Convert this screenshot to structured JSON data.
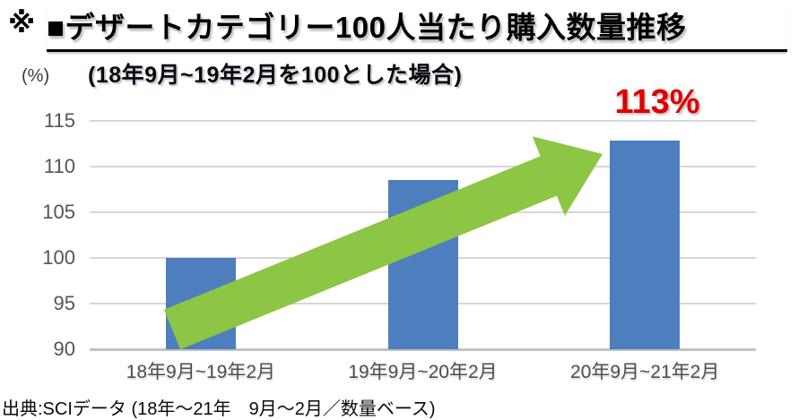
{
  "header": {
    "marker": "※",
    "title": "■デザートカテゴリー100人当たり購入数量推移"
  },
  "chart_data": {
    "type": "bar",
    "title": "デザートカテゴリー100人当たり購入数量推移",
    "subtitle": "(18年9月~19年2月を100とした場合)",
    "y_unit_label": "(%)",
    "categories": [
      "18年9月~19年2月",
      "19年9月~20年2月",
      "20年9月~21年2月"
    ],
    "values": [
      100,
      108.5,
      112.8
    ],
    "ylim": [
      90,
      115
    ],
    "yticks": [
      90,
      95,
      100,
      105,
      110,
      115
    ],
    "grid": true,
    "legend": "none",
    "annotation": {
      "text": "113%",
      "category": "20年9月~21年2月"
    },
    "colors": {
      "bar": "#4d7ebd",
      "arrow": "#8cc644",
      "annotation": "#de0000",
      "gridline": "#d6d6d6",
      "baseline": "#c2c2c2",
      "y_tick_label": "#545454",
      "x_tick_label": "#4e4e4e"
    }
  },
  "footer": {
    "source": "出典:SCIデータ (18年～21年　9月～2月／数量ベース)"
  }
}
